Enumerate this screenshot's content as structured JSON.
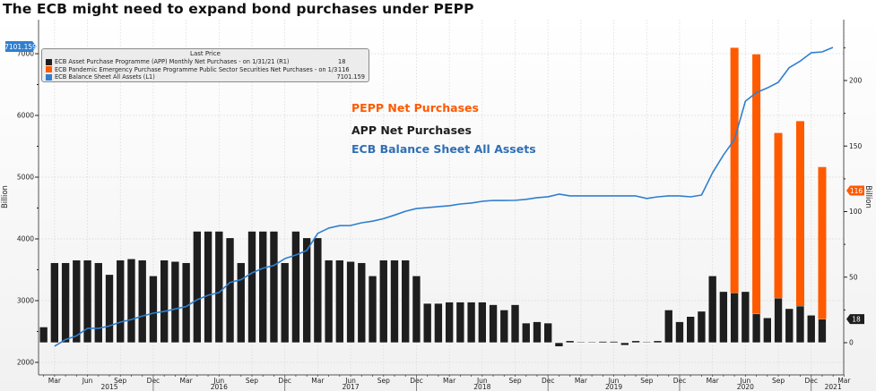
{
  "title": "The ECB might need to expand bond purchases under PEPP",
  "legend": {
    "header": "Last Price",
    "items": [
      {
        "label": "ECB Asset Purchase Programme (APP) Monthly Net Purchases -  on 1/31/21  (R1)",
        "value": "18",
        "color": "#1e1e1e"
      },
      {
        "label": "ECB Pandemic Emergency Purchase Programme Public Sector Securities Net Purchases -  on 1/31/21",
        "value": "116",
        "color": "#ff5a00"
      },
      {
        "label": "ECB Balance Sheet All Assets  (L1)",
        "value": "7101.159",
        "color": "#2f7fd0"
      }
    ]
  },
  "annotations": [
    {
      "text": "PEPP Net Purchases",
      "color": "#ff5a00"
    },
    {
      "text": "APP Net Purchases",
      "color": "#1e1e1e"
    },
    {
      "text": "ECB Balance Sheet All Assets",
      "color": "#2f6fb5"
    }
  ],
  "last_value_tags": {
    "left": {
      "text": "7101.159",
      "color": "#2f7fd0"
    },
    "right_pepp": {
      "text": "116",
      "color": "#ff5a00"
    },
    "right_app": {
      "text": "18",
      "color": "#1e1e1e"
    }
  },
  "chart_data": {
    "type": "bar+line",
    "title": "The ECB might need to expand bond purchases under PEPP",
    "xlabel": "",
    "left_axis": {
      "label": "Billion",
      "range": [
        1800,
        7300
      ],
      "ticks": [
        2000,
        3000,
        4000,
        5000,
        6000,
        7000
      ],
      "series": "ECB Balance Sheet All Assets"
    },
    "right_axis": {
      "label": "Billion",
      "range": [
        -20,
        245
      ],
      "ticks": [
        0,
        50,
        100,
        150,
        200
      ],
      "series": [
        "APP Monthly Net Purchases",
        "PEPP Net Purchases"
      ]
    },
    "grid": true,
    "legend_position": "top-left",
    "x_ticks": {
      "months": [
        "Mar",
        "Jun",
        "Sep",
        "Dec",
        "Mar",
        "Jun",
        "Sep",
        "Dec",
        "Mar",
        "Jun",
        "Sep",
        "Dec",
        "Mar",
        "Jun",
        "Sep",
        "Dec",
        "Mar",
        "Jun",
        "Sep",
        "Dec",
        "Mar",
        "Jun",
        "Sep",
        "Dec",
        "Mar"
      ],
      "years": [
        "2015",
        "2016",
        "2017",
        "2018",
        "2019",
        "2020",
        "2021"
      ]
    },
    "months": [
      "2015-02",
      "2015-03",
      "2015-04",
      "2015-05",
      "2015-06",
      "2015-07",
      "2015-08",
      "2015-09",
      "2015-10",
      "2015-11",
      "2015-12",
      "2016-01",
      "2016-02",
      "2016-03",
      "2016-04",
      "2016-05",
      "2016-06",
      "2016-07",
      "2016-08",
      "2016-09",
      "2016-10",
      "2016-11",
      "2016-12",
      "2017-01",
      "2017-02",
      "2017-03",
      "2017-04",
      "2017-05",
      "2017-06",
      "2017-07",
      "2017-08",
      "2017-09",
      "2017-10",
      "2017-11",
      "2017-12",
      "2018-01",
      "2018-02",
      "2018-03",
      "2018-04",
      "2018-05",
      "2018-06",
      "2018-07",
      "2018-08",
      "2018-09",
      "2018-10",
      "2018-11",
      "2018-12",
      "2019-01",
      "2019-02",
      "2019-03",
      "2019-04",
      "2019-05",
      "2019-06",
      "2019-07",
      "2019-08",
      "2019-09",
      "2019-10",
      "2019-11",
      "2019-12",
      "2020-01",
      "2020-02",
      "2020-03",
      "2020-04",
      "2020-05",
      "2020-06",
      "2020-07",
      "2020-08",
      "2020-09",
      "2020-10",
      "2020-11",
      "2020-12",
      "2021-01"
    ],
    "series": [
      {
        "name": "APP Monthly Net Purchases",
        "axis": "right",
        "type": "bar",
        "color": "#1e1e1e",
        "values": [
          12,
          61,
          61,
          63,
          63,
          61,
          52,
          63,
          64,
          63,
          51,
          63,
          62,
          61,
          85,
          85,
          85,
          80,
          61,
          85,
          85,
          85,
          61,
          85,
          80,
          80,
          63,
          63,
          62,
          61,
          51,
          63,
          63,
          63,
          51,
          30,
          30,
          31,
          31,
          31,
          31,
          29,
          25,
          29,
          15,
          16,
          15,
          -3,
          1.5,
          0.5,
          0.5,
          1,
          1,
          -2,
          1.5,
          0.5,
          1.5,
          25,
          16,
          20,
          24,
          51,
          39,
          38,
          39,
          22,
          19,
          34,
          26,
          28,
          21,
          18
        ]
      },
      {
        "name": "PEPP Net Purchases",
        "axis": "right",
        "type": "bar",
        "stacked": true,
        "color": "#ff5a00",
        "values": [
          0,
          0,
          0,
          0,
          0,
          0,
          0,
          0,
          0,
          0,
          0,
          0,
          0,
          0,
          0,
          0,
          0,
          0,
          0,
          0,
          0,
          0,
          0,
          0,
          0,
          0,
          0,
          0,
          0,
          0,
          0,
          0,
          0,
          0,
          0,
          0,
          0,
          0,
          0,
          0,
          0,
          0,
          0,
          0,
          0,
          0,
          0,
          0,
          0,
          0,
          0,
          0,
          0,
          0,
          0,
          0,
          0,
          0,
          0,
          0,
          0,
          0,
          0,
          187,
          0,
          198,
          0,
          126,
          0,
          141,
          0,
          116
        ]
      },
      {
        "name": "ECB Balance Sheet All Assets",
        "axis": "left",
        "type": "line",
        "color": "#2f7fd0",
        "values": [
          null,
          2261,
          2370,
          2430,
          2551,
          2551,
          2590,
          2652,
          2694,
          2750,
          2797,
          2825,
          2865,
          2905,
          3015,
          3087,
          3131,
          3295,
          3340,
          3449,
          3525,
          3570,
          3681,
          3739,
          3812,
          4090,
          4175,
          4215,
          4217,
          4261,
          4287,
          4328,
          4385,
          4447,
          4492,
          4507,
          4522,
          4537,
          4565,
          4581,
          4609,
          4623,
          4623,
          4625,
          4640,
          4667,
          4682,
          4725,
          4696,
          4696,
          4696,
          4696,
          4696,
          4696,
          4696,
          4655,
          4681,
          4696,
          4696,
          4681,
          4710,
          5070,
          5360,
          5610,
          6230,
          6370,
          6445,
          6536,
          6775,
          6880,
          7015,
          7029
        ],
        "last": 7101.159
      }
    ]
  }
}
